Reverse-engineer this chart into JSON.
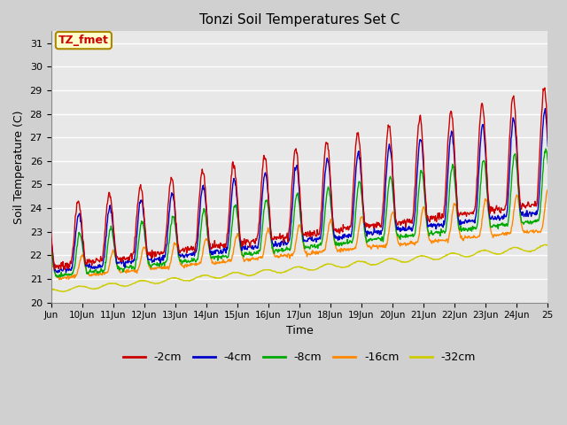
{
  "title": "Tonzi Soil Temperatures Set C",
  "xlabel": "Time",
  "ylabel": "Soil Temperature (C)",
  "annotation": "TZ_fmet",
  "annotation_color": "#cc0000",
  "annotation_bg": "#ffffcc",
  "annotation_border": "#aa8800",
  "ylim": [
    20.0,
    31.5
  ],
  "yticks": [
    20.0,
    21.0,
    22.0,
    23.0,
    24.0,
    25.0,
    26.0,
    27.0,
    28.0,
    29.0,
    30.0,
    31.0
  ],
  "fig_bg": "#d0d0d0",
  "plot_bg": "#e8e8e8",
  "line_colors": {
    "-2cm": "#cc0000",
    "-4cm": "#0000cc",
    "-8cm": "#00aa00",
    "-16cm": "#ff8800",
    "-32cm": "#cccc00"
  },
  "legend_labels": [
    "-2cm",
    "-4cm",
    "-8cm",
    "-16cm",
    "-32cm"
  ],
  "n_points": 960,
  "x_start": 9.0,
  "x_end": 25.0,
  "xtick_positions": [
    9,
    10,
    11,
    12,
    13,
    14,
    15,
    16,
    17,
    18,
    19,
    20,
    21,
    22,
    23,
    24,
    25
  ],
  "xtick_labels": [
    "Jun",
    "10Jun",
    "11Jun",
    "12Jun",
    "13Jun",
    "14Jun",
    "15Jun",
    "16Jun",
    "17Jun",
    "18Jun",
    "19Jun",
    "20Jun",
    "21Jun",
    "22Jun",
    "23Jun",
    "24Jun",
    "25"
  ]
}
